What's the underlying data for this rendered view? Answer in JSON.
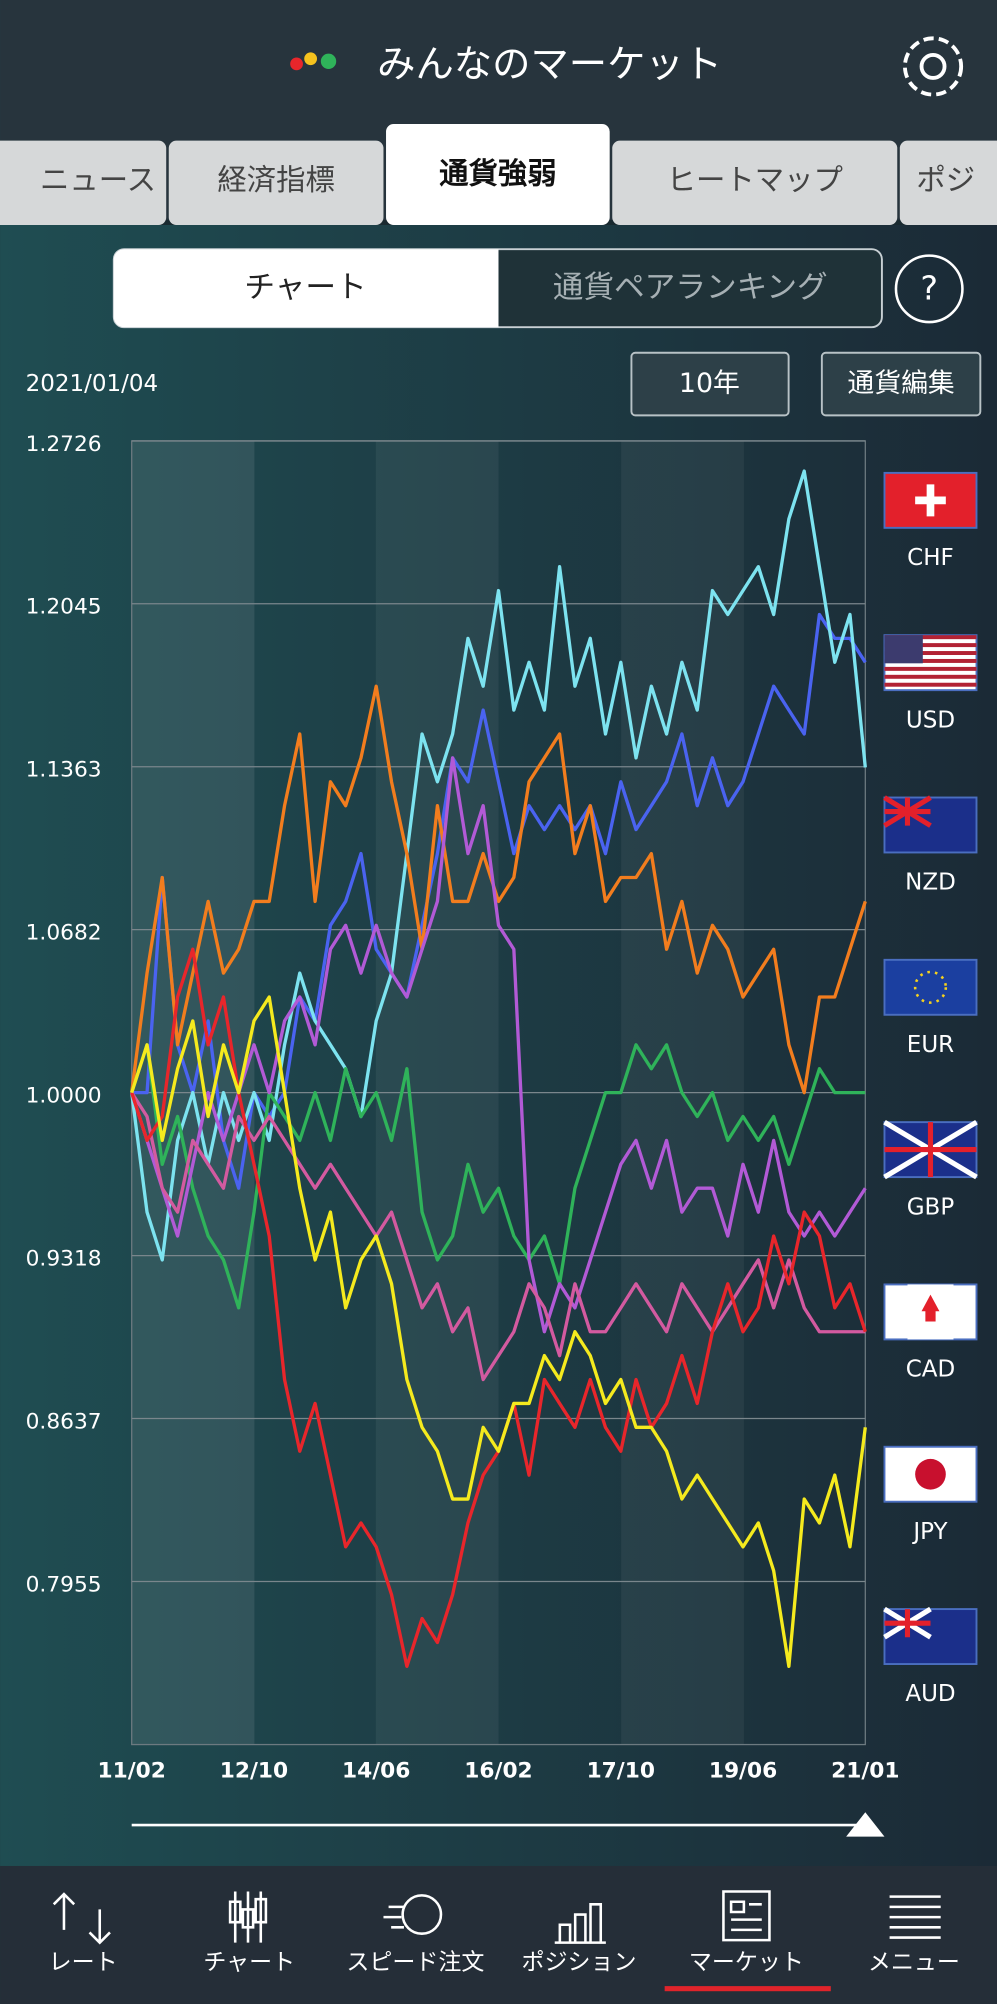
{
  "header": {
    "title": "みんなのマーケット"
  },
  "tabs": [
    "ニュース",
    "経済指標",
    "通貨強弱",
    "ヒートマップ",
    "ポジ"
  ],
  "segments": [
    "チャート",
    "通貨ペアランキング"
  ],
  "help": "?",
  "date": "2021/01/04",
  "period": "10年",
  "edit": "通貨編集",
  "chart_data": {
    "type": "line",
    "categories": [
      "11/02",
      null,
      null,
      null,
      null,
      null,
      null,
      null,
      "12/10",
      null,
      null,
      null,
      null,
      null,
      null,
      null,
      "14/06",
      null,
      null,
      null,
      null,
      null,
      null,
      null,
      "16/02",
      null,
      null,
      null,
      null,
      null,
      null,
      null,
      "17/10",
      null,
      null,
      null,
      null,
      null,
      null,
      null,
      "19/06",
      null,
      null,
      null,
      null,
      null,
      null,
      null,
      "21/01"
    ],
    "ylim": [
      0.7273,
      1.2726
    ],
    "yticks": [
      0.7955,
      0.8637,
      0.9318,
      {
        "value": 1,
        "label": "1.0000"
      },
      1.0682,
      1.1363,
      1.2045,
      1.2726
    ],
    "grid": true,
    "series": [
      {
        "name": "CHF",
        "color": "#4a63f0",
        "values": [
          1.0,
          1.0,
          1.09,
          1.02,
          1.0,
          1.03,
          0.98,
          0.96,
          1.0,
          0.99,
          1.0,
          1.04,
          1.03,
          1.07,
          1.08,
          1.1,
          1.06,
          1.05,
          1.04,
          1.07,
          1.1,
          1.14,
          1.13,
          1.16,
          1.13,
          1.1,
          1.12,
          1.11,
          1.12,
          1.11,
          1.12,
          1.1,
          1.13,
          1.11,
          1.12,
          1.13,
          1.15,
          1.12,
          1.14,
          1.12,
          1.13,
          1.15,
          1.17,
          1.16,
          1.15,
          1.2,
          1.19,
          1.19,
          1.18
        ]
      },
      {
        "name": "USD",
        "color": "#7de3f0",
        "values": [
          1.0,
          0.95,
          0.93,
          0.98,
          1.0,
          0.97,
          1.0,
          0.98,
          1.0,
          0.98,
          1.02,
          1.05,
          1.03,
          1.02,
          1.01,
          0.99,
          1.03,
          1.05,
          1.1,
          1.15,
          1.13,
          1.15,
          1.19,
          1.17,
          1.21,
          1.16,
          1.18,
          1.16,
          1.22,
          1.17,
          1.19,
          1.15,
          1.18,
          1.14,
          1.17,
          1.15,
          1.18,
          1.16,
          1.21,
          1.2,
          1.21,
          1.22,
          1.2,
          1.24,
          1.26,
          1.22,
          1.18,
          1.2,
          1.136
        ]
      },
      {
        "name": "NZD",
        "color": "#f27d1e",
        "values": [
          1.0,
          1.05,
          1.09,
          1.02,
          1.05,
          1.08,
          1.05,
          1.06,
          1.08,
          1.08,
          1.12,
          1.15,
          1.08,
          1.13,
          1.12,
          1.14,
          1.17,
          1.13,
          1.1,
          1.06,
          1.12,
          1.08,
          1.08,
          1.1,
          1.08,
          1.09,
          1.13,
          1.14,
          1.15,
          1.1,
          1.12,
          1.08,
          1.09,
          1.09,
          1.1,
          1.06,
          1.08,
          1.05,
          1.07,
          1.06,
          1.04,
          1.05,
          1.06,
          1.02,
          1.0,
          1.04,
          1.04,
          1.06,
          1.08
        ]
      },
      {
        "name": "EUR",
        "color": "#2fb35a",
        "values": [
          1.0,
          1.02,
          0.97,
          0.99,
          0.96,
          0.94,
          0.93,
          0.91,
          0.95,
          1.0,
          0.99,
          0.98,
          1.0,
          0.98,
          1.01,
          0.99,
          1.0,
          0.98,
          1.01,
          0.95,
          0.93,
          0.94,
          0.97,
          0.95,
          0.96,
          0.94,
          0.93,
          0.94,
          0.92,
          0.96,
          0.98,
          1.0,
          1.0,
          1.02,
          1.01,
          1.02,
          1.0,
          0.99,
          1.0,
          0.98,
          0.99,
          0.98,
          0.99,
          0.97,
          0.99,
          1.01,
          1.0,
          1.0,
          1.0
        ]
      },
      {
        "name": "GBP",
        "color": "#b25ad6",
        "values": [
          1.0,
          0.98,
          0.96,
          0.94,
          0.97,
          1.0,
          0.98,
          1.0,
          1.02,
          1.0,
          1.03,
          1.04,
          1.02,
          1.06,
          1.07,
          1.05,
          1.07,
          1.05,
          1.04,
          1.06,
          1.08,
          1.14,
          1.1,
          1.12,
          1.07,
          1.06,
          0.93,
          0.9,
          0.92,
          0.91,
          0.93,
          0.95,
          0.97,
          0.98,
          0.96,
          0.98,
          0.95,
          0.96,
          0.96,
          0.94,
          0.97,
          0.95,
          0.98,
          0.95,
          0.94,
          0.95,
          0.94,
          0.95,
          0.96
        ]
      },
      {
        "name": "CAD",
        "color": "#d35aa0",
        "values": [
          1.0,
          0.99,
          0.96,
          0.95,
          0.98,
          0.97,
          0.96,
          0.99,
          0.98,
          0.99,
          0.98,
          0.97,
          0.96,
          0.97,
          0.96,
          0.95,
          0.94,
          0.95,
          0.93,
          0.91,
          0.92,
          0.9,
          0.91,
          0.88,
          0.89,
          0.9,
          0.92,
          0.91,
          0.89,
          0.92,
          0.9,
          0.9,
          0.91,
          0.92,
          0.91,
          0.9,
          0.92,
          0.91,
          0.9,
          0.91,
          0.92,
          0.93,
          0.91,
          0.93,
          0.91,
          0.9,
          0.9,
          0.9,
          0.9
        ]
      },
      {
        "name": "JPY",
        "color": "#e8262b",
        "values": [
          1.0,
          0.98,
          0.99,
          1.04,
          1.06,
          1.02,
          1.04,
          1.0,
          0.97,
          0.94,
          0.88,
          0.85,
          0.87,
          0.84,
          0.81,
          0.82,
          0.81,
          0.79,
          0.76,
          0.78,
          0.77,
          0.79,
          0.82,
          0.84,
          0.85,
          0.87,
          0.84,
          0.88,
          0.87,
          0.86,
          0.88,
          0.86,
          0.85,
          0.88,
          0.86,
          0.87,
          0.89,
          0.87,
          0.9,
          0.92,
          0.9,
          0.91,
          0.94,
          0.92,
          0.95,
          0.94,
          0.91,
          0.92,
          0.9
        ]
      },
      {
        "name": "AUD",
        "color": "#f5ea1e",
        "values": [
          1.0,
          1.02,
          0.98,
          1.01,
          1.03,
          0.99,
          1.02,
          1.0,
          1.03,
          1.04,
          1.0,
          0.96,
          0.93,
          0.95,
          0.91,
          0.93,
          0.94,
          0.92,
          0.88,
          0.86,
          0.85,
          0.83,
          0.83,
          0.86,
          0.85,
          0.87,
          0.87,
          0.89,
          0.88,
          0.9,
          0.89,
          0.87,
          0.88,
          0.86,
          0.86,
          0.85,
          0.83,
          0.84,
          0.83,
          0.82,
          0.81,
          0.82,
          0.8,
          0.76,
          0.83,
          0.82,
          0.84,
          0.81,
          0.86
        ]
      }
    ]
  },
  "nav": [
    "レート",
    "チャート",
    "スピード注文",
    "ポジション",
    "マーケット",
    "メニュー"
  ]
}
